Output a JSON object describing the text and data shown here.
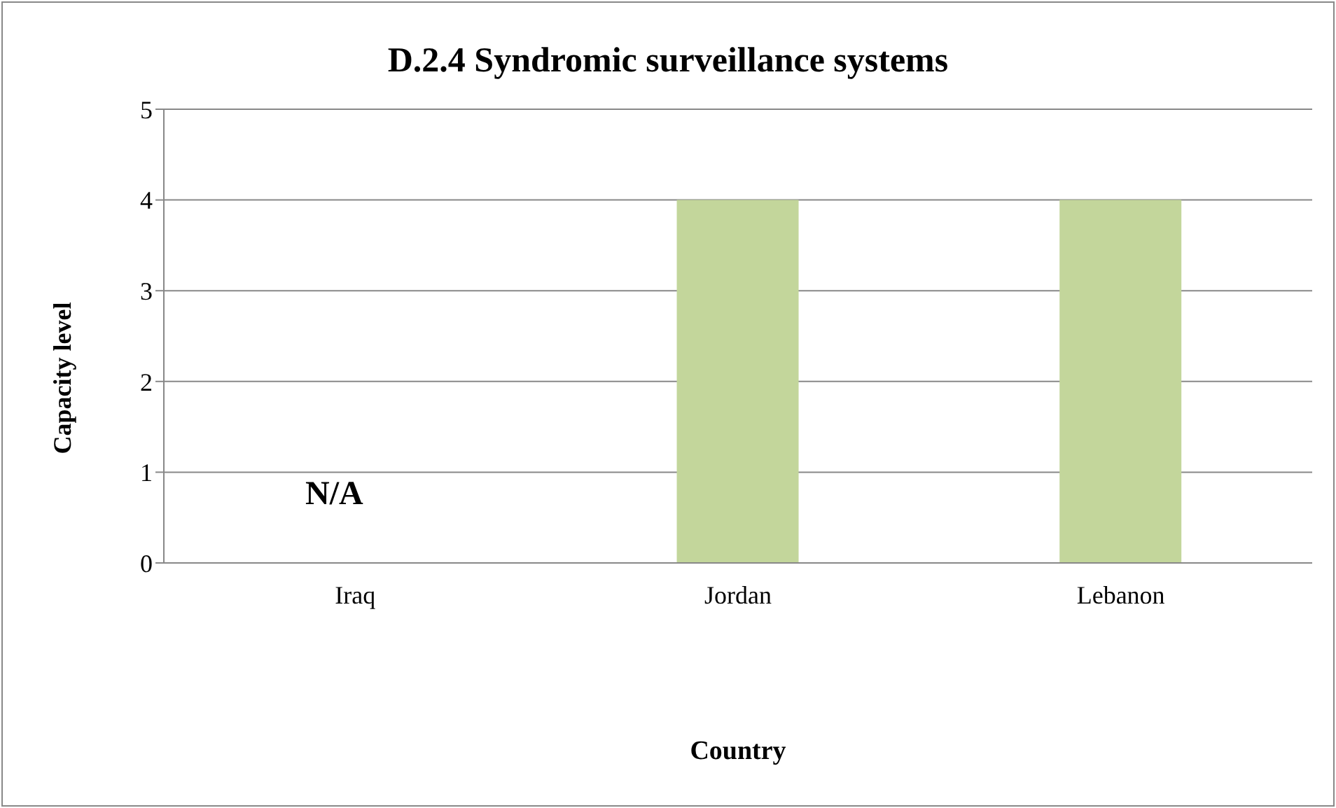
{
  "chart_data": {
    "type": "bar",
    "title": "D.2.4 Syndromic surveillance systems",
    "xlabel": "Country",
    "ylabel": "Capacity level",
    "categories": [
      "Iraq",
      "Jordan",
      "Lebanon"
    ],
    "values": [
      null,
      4,
      4
    ],
    "color": "#c3d69b",
    "ylim": [
      0,
      5
    ],
    "yticks": [
      0,
      1,
      2,
      3,
      4,
      5
    ],
    "grid": "y",
    "annotations": [
      "N/A"
    ]
  }
}
